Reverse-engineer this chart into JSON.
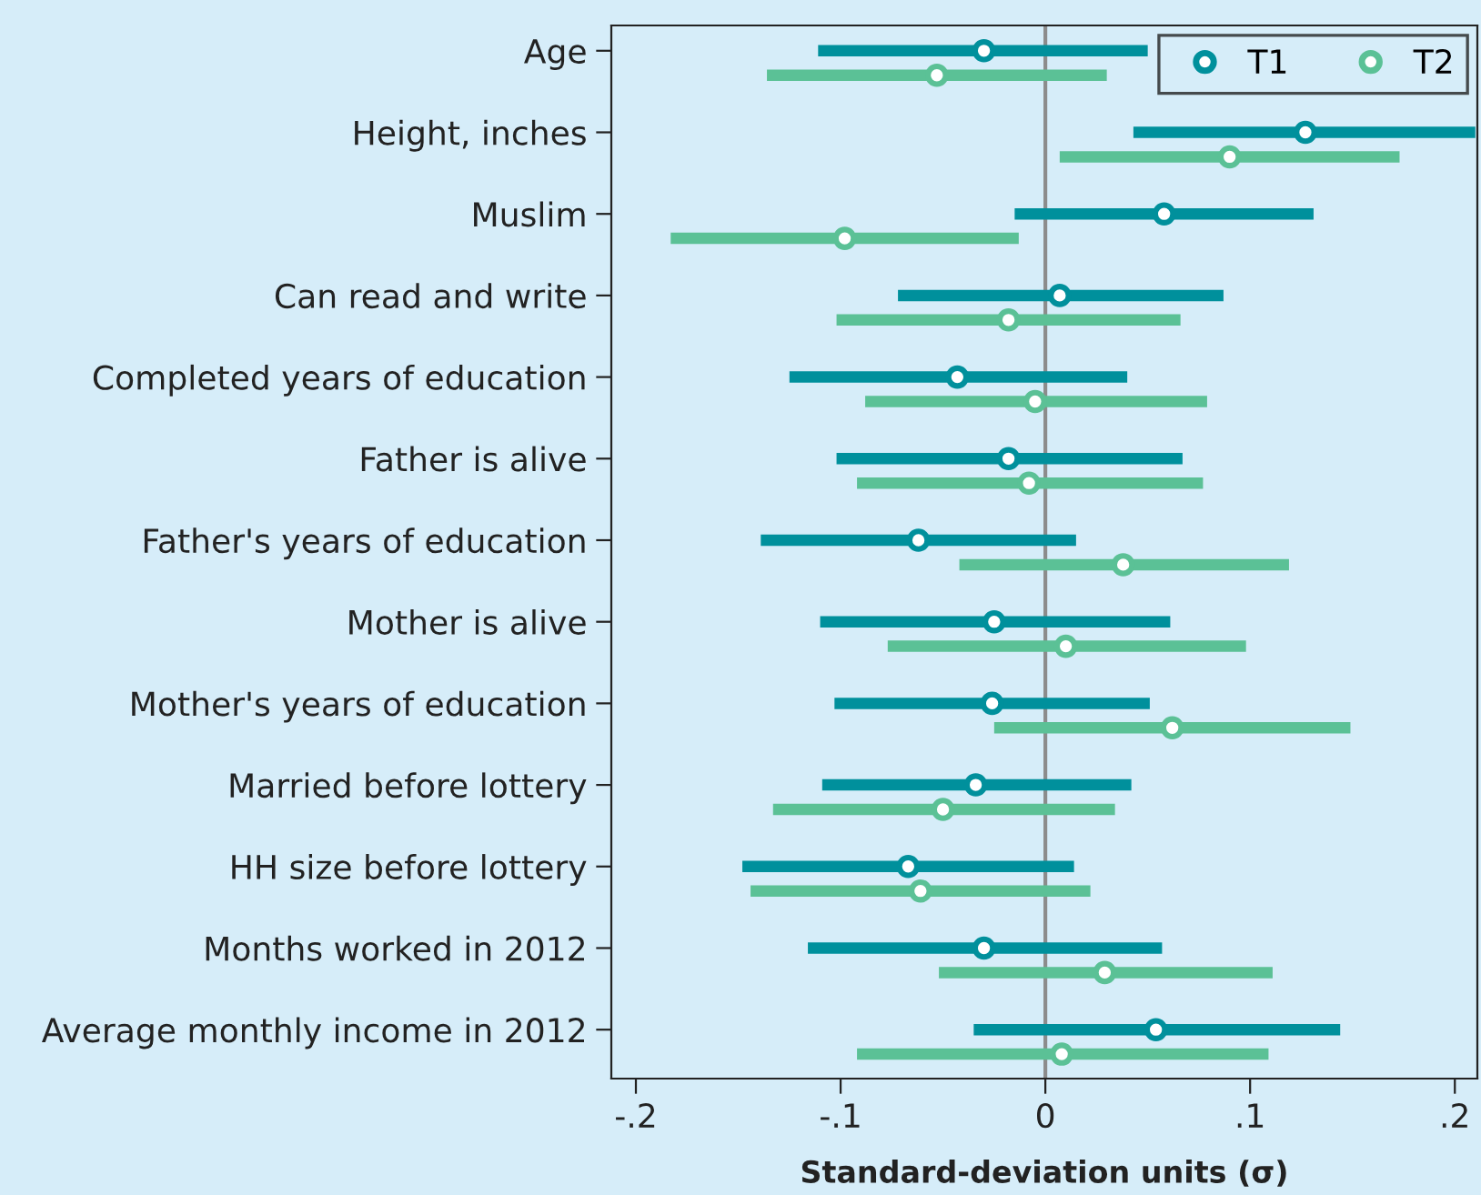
{
  "chart_data": {
    "type": "scatter",
    "orientation": "horizontal",
    "categories": [
      "Age",
      "Height, inches",
      "Muslim",
      "Can read and write",
      "Completed years of education",
      "Father is alive",
      "Father's years of education",
      "Mother is alive",
      "Mother's years of education",
      "Married before lottery",
      "HH size before lottery",
      "Months worked in 2012",
      "Average monthly income in 2012"
    ],
    "series": [
      {
        "name": "T1",
        "color": "#00909c",
        "values": [
          -0.03,
          0.127,
          0.058,
          0.007,
          -0.043,
          -0.018,
          -0.062,
          -0.025,
          -0.026,
          -0.034,
          -0.067,
          -0.03,
          0.054
        ],
        "errors": [
          [
            -0.111,
            0.05
          ],
          [
            0.043,
            0.21
          ],
          [
            -0.015,
            0.131
          ],
          [
            -0.072,
            0.087
          ],
          [
            -0.125,
            0.04
          ],
          [
            -0.102,
            0.067
          ],
          [
            -0.139,
            0.015
          ],
          [
            -0.11,
            0.061
          ],
          [
            -0.103,
            0.051
          ],
          [
            -0.109,
            0.042
          ],
          [
            -0.148,
            0.014
          ],
          [
            -0.116,
            0.057
          ],
          [
            -0.035,
            0.144
          ]
        ]
      },
      {
        "name": "T2",
        "color": "#5bc196",
        "values": [
          -0.053,
          0.09,
          -0.098,
          -0.018,
          -0.005,
          -0.008,
          0.038,
          0.01,
          0.062,
          -0.05,
          -0.061,
          0.029,
          0.008
        ],
        "errors": [
          [
            -0.136,
            0.03
          ],
          [
            0.007,
            0.173
          ],
          [
            -0.183,
            -0.013
          ],
          [
            -0.102,
            0.066
          ],
          [
            -0.088,
            0.079
          ],
          [
            -0.092,
            0.077
          ],
          [
            -0.042,
            0.119
          ],
          [
            -0.077,
            0.098
          ],
          [
            -0.025,
            0.149
          ],
          [
            -0.133,
            0.034
          ],
          [
            -0.144,
            0.022
          ],
          [
            -0.052,
            0.111
          ],
          [
            -0.092,
            0.109
          ]
        ]
      }
    ],
    "xlabel": "Standard-deviation units (σ)",
    "xlim": [
      -0.212,
      0.211
    ],
    "xticks": [
      {
        "value": -0.2,
        "label": "-.2"
      },
      {
        "value": -0.1,
        "label": "-.1"
      },
      0,
      {
        "value": 0.1,
        "label": ".1"
      },
      {
        "value": 0.2,
        "label": ".2"
      }
    ],
    "ref_lines": [
      {
        "axis": "x",
        "value": 0,
        "color": "#8c8c8c"
      }
    ],
    "marker": "circle",
    "legend": "top right",
    "grid": false
  }
}
